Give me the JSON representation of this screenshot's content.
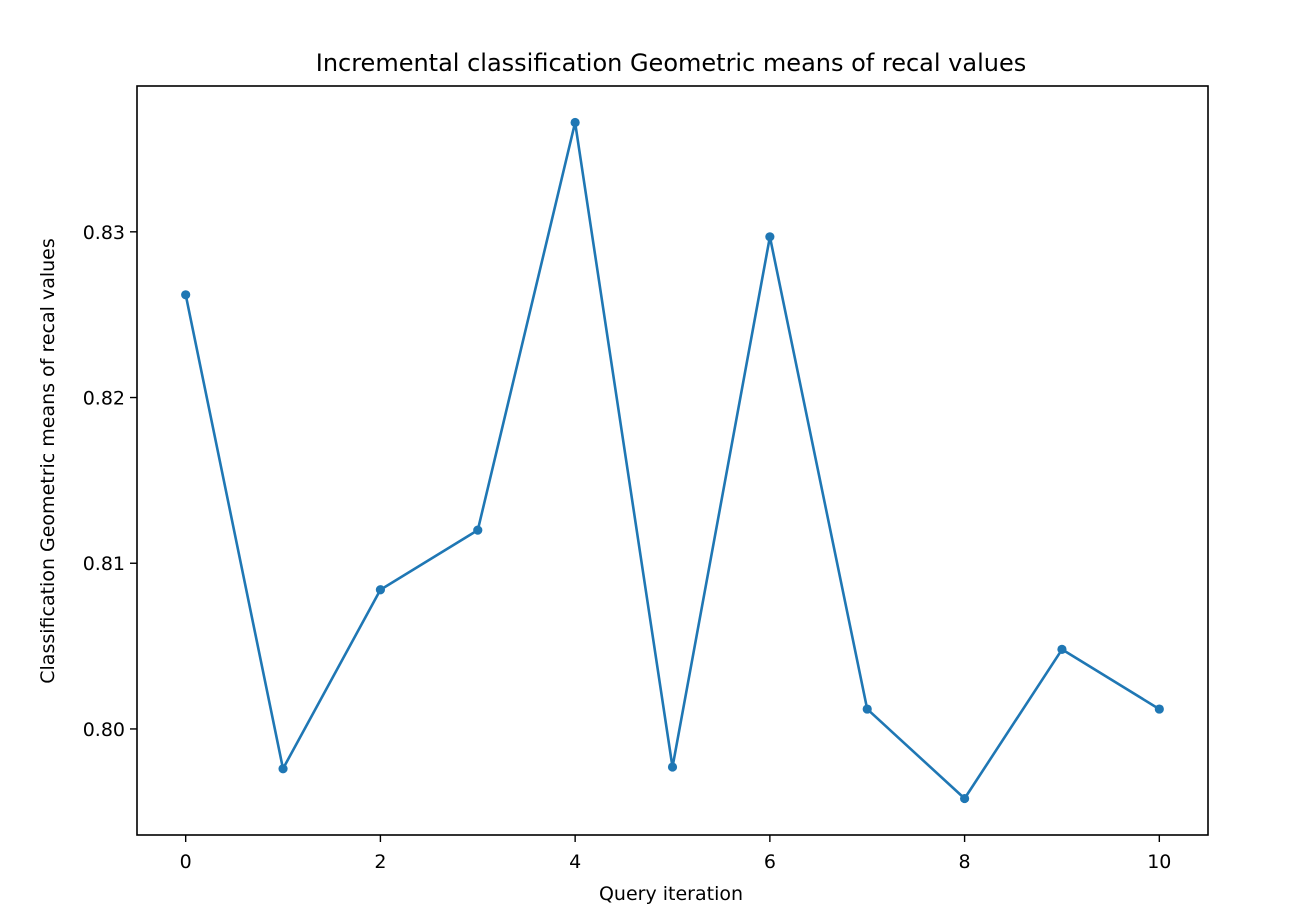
{
  "chart_data": {
    "type": "line",
    "title": "Incremental classification Geometric means of recal values",
    "xlabel": "Query iteration",
    "ylabel": "Classification Geometric means of recal values",
    "xlim": [
      -0.5,
      10.5
    ],
    "ylim": [
      0.7936,
      0.8388
    ],
    "xticks": [
      0,
      2,
      4,
      6,
      8,
      10
    ],
    "yticks": [
      0.8,
      0.81,
      0.82,
      0.83
    ],
    "xtick_labels": [
      "0",
      "2",
      "4",
      "6",
      "8",
      "10"
    ],
    "ytick_labels": [
      "0.80",
      "0.81",
      "0.82",
      "0.83"
    ],
    "grid": false,
    "legend": "none",
    "series": [
      {
        "color": "#1f77b4",
        "marker": "circle",
        "x": [
          0,
          1,
          2,
          3,
          4,
          5,
          6,
          7,
          8,
          9,
          10
        ],
        "y": [
          0.8262,
          0.7976,
          0.8084,
          0.812,
          0.8366,
          0.7977,
          0.8297,
          0.8012,
          0.7958,
          0.8048,
          0.8012
        ]
      }
    ]
  }
}
